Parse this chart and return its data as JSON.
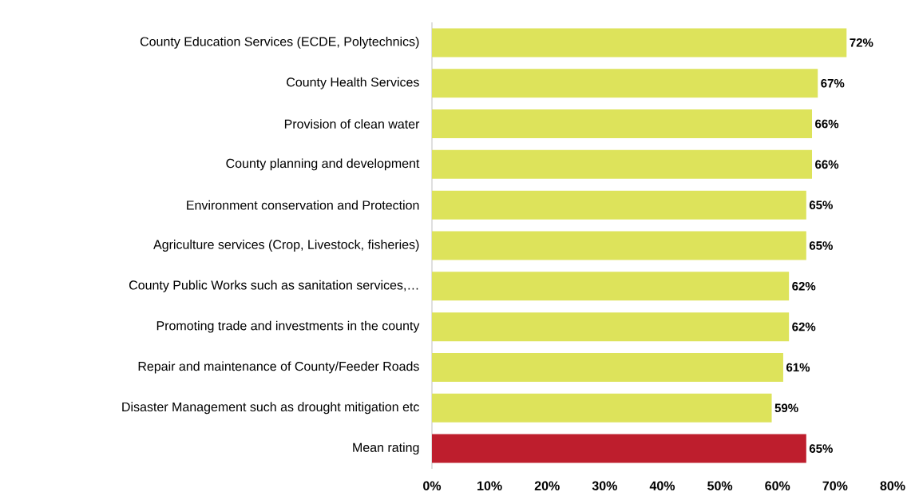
{
  "chart_data": {
    "type": "bar",
    "orientation": "horizontal",
    "categories": [
      "County Education Services (ECDE, Polytechnics)",
      "County Health Services",
      "Provision of clean water",
      "County planning and development",
      "Environment conservation and Protection",
      "Agriculture services (Crop, Livestock, fisheries)",
      "County Public Works such as sanitation services,…",
      "Promoting trade and investments in the county",
      "Repair and maintenance of County/Feeder Roads",
      "Disaster Management such as drought mitigation etc",
      "Mean rating"
    ],
    "values": [
      72,
      67,
      66,
      66,
      65,
      65,
      62,
      62,
      61,
      59,
      65
    ],
    "value_labels": [
      "72%",
      "67%",
      "66%",
      "66%",
      "65%",
      "65%",
      "62%",
      "62%",
      "61%",
      "59%",
      "65%"
    ],
    "colors": [
      "#dde35b",
      "#dde35b",
      "#dde35b",
      "#dde35b",
      "#dde35b",
      "#dde35b",
      "#dde35b",
      "#dde35b",
      "#dde35b",
      "#dde35b",
      "#be1e2d"
    ],
    "xlim": [
      0,
      80
    ],
    "xticks": [
      {
        "value": 0,
        "label": "0%"
      },
      {
        "value": 10,
        "label": "10%"
      },
      {
        "value": 20,
        "label": "20%"
      },
      {
        "value": 30,
        "label": "30%"
      },
      {
        "value": 40,
        "label": "40%"
      },
      {
        "value": 50,
        "label": "50%"
      },
      {
        "value": 60,
        "label": "60%"
      },
      {
        "value": 70,
        "label": "70%"
      },
      {
        "value": 80,
        "label": "80%"
      }
    ],
    "grid": false
  }
}
